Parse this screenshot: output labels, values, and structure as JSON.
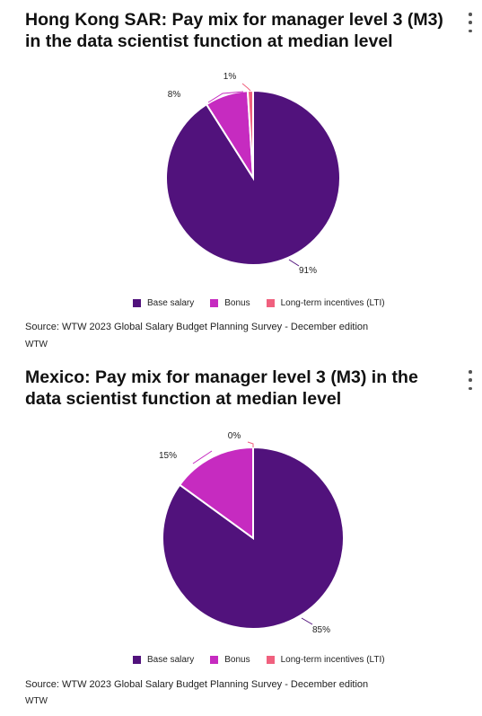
{
  "colors": {
    "base_salary": "#51127c",
    "bonus": "#c62bc0",
    "lti": "#f0607e"
  },
  "chart_data": [
    {
      "type": "pie",
      "title": "Hong Kong SAR: Pay mix for manager level 3 (M3) in the data scientist function at median level",
      "categories": [
        "Base salary",
        "Bonus",
        "Long-term incentives (LTI)"
      ],
      "values": [
        91,
        8,
        1
      ],
      "labels": [
        "91%",
        "8%",
        "1%"
      ],
      "legend": [
        "Base salary",
        "Bonus",
        "Long-term incentives (LTI)"
      ],
      "legend_position": "bottom",
      "source": "Source: WTW 2023 Global Salary Budget Planning Survey - December edition",
      "brand": "WTW"
    },
    {
      "type": "pie",
      "title": "Mexico: Pay mix for manager level 3 (M3) in the data scientist function at median level",
      "categories": [
        "Base salary",
        "Bonus",
        "Long-term incentives (LTI)"
      ],
      "values": [
        85,
        15,
        0
      ],
      "labels": [
        "85%",
        "15%",
        "0%"
      ],
      "legend": [
        "Base salary",
        "Bonus",
        "Long-term incentives (LTI)"
      ],
      "legend_position": "bottom",
      "source": "Source: WTW 2023 Global Salary Budget Planning Survey - December edition",
      "brand": "WTW"
    }
  ]
}
